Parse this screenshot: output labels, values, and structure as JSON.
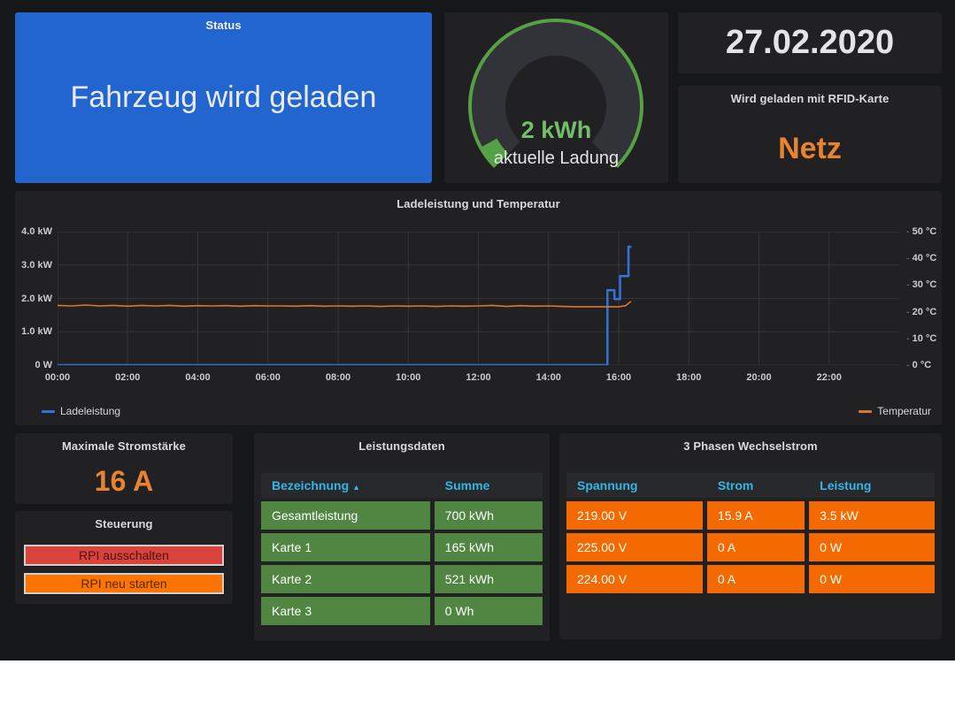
{
  "theme": {
    "background": "#161719",
    "panel": "#212124",
    "accent_blue": "#3274d9",
    "accent_orange": "#e0752d",
    "accent_green": "#55a144",
    "table_header_blue": "#33b5e5"
  },
  "status_panel": {
    "title": "Status",
    "text": "Fahrzeug wird geladen",
    "bg_color": "#2265cf"
  },
  "gauge_panel": {
    "value": "2 kWh",
    "label": "aktuelle Ladung",
    "fraction": 0.06,
    "arc_color": "#55a144",
    "value_color": "#73bf69"
  },
  "date_panel": {
    "value": "27.02.2020"
  },
  "rfid_panel": {
    "title": "Wird geladen mit RFID-Karte",
    "value": "Netz",
    "value_color": "#e8832e"
  },
  "chart_data": {
    "type": "line",
    "title": "Ladeleistung und Temperatur",
    "x_ticks": [
      "00:00",
      "02:00",
      "04:00",
      "06:00",
      "08:00",
      "10:00",
      "12:00",
      "14:00",
      "16:00",
      "18:00",
      "20:00",
      "22:00"
    ],
    "x_range_hours": [
      0,
      24
    ],
    "grid": true,
    "left_axis": {
      "tick_labels": [
        "4.0 kW",
        "3.0 kW",
        "2.0 kW",
        "1.0 kW",
        "0 W"
      ],
      "tick_values": [
        4,
        3,
        2,
        1,
        0
      ],
      "range": [
        0,
        4
      ]
    },
    "right_axis": {
      "tick_labels": [
        "50 °C",
        "40 °C",
        "30 °C",
        "20 °C",
        "10 °C",
        "0 °C"
      ],
      "tick_values": [
        50,
        40,
        30,
        20,
        10,
        0
      ],
      "range": [
        0,
        50
      ]
    },
    "legend_position": "bottom",
    "series": [
      {
        "name": "Ladeleistung",
        "axis": "left",
        "color": "#3274d9",
        "width": 2.5,
        "points": [
          [
            0,
            0
          ],
          [
            15.68,
            0
          ],
          [
            15.68,
            2.25
          ],
          [
            15.88,
            2.25
          ],
          [
            15.88,
            1.98
          ],
          [
            16.04,
            1.98
          ],
          [
            16.04,
            2.67
          ],
          [
            16.28,
            2.67
          ],
          [
            16.28,
            3.55
          ],
          [
            16.36,
            3.55
          ]
        ]
      },
      {
        "name": "Temperatur",
        "axis": "right",
        "color": "#e0752d",
        "width": 1.6,
        "points": [
          [
            0,
            22.4
          ],
          [
            0.4,
            22.2
          ],
          [
            0.8,
            22.5
          ],
          [
            1.2,
            22.2
          ],
          [
            1.6,
            22.4
          ],
          [
            2.0,
            22.1
          ],
          [
            2.4,
            22.4
          ],
          [
            2.8,
            22.2
          ],
          [
            3.2,
            22.4
          ],
          [
            3.6,
            22.1
          ],
          [
            4.0,
            22.3
          ],
          [
            4.4,
            22.2
          ],
          [
            4.8,
            22.3
          ],
          [
            5.2,
            22.1
          ],
          [
            5.6,
            22.3
          ],
          [
            6.0,
            22.2
          ],
          [
            6.4,
            22.2
          ],
          [
            6.8,
            22.1
          ],
          [
            7.2,
            22.3
          ],
          [
            7.6,
            22.1
          ],
          [
            8.0,
            22.2
          ],
          [
            8.4,
            22.1
          ],
          [
            8.8,
            22.2
          ],
          [
            9.2,
            22.0
          ],
          [
            9.6,
            22.2
          ],
          [
            10.0,
            22.1
          ],
          [
            10.4,
            22.2
          ],
          [
            10.8,
            22.0
          ],
          [
            11.2,
            22.2
          ],
          [
            11.6,
            22.1
          ],
          [
            12.0,
            22.2
          ],
          [
            12.4,
            22.4
          ],
          [
            12.8,
            22.0
          ],
          [
            13.2,
            22.3
          ],
          [
            13.6,
            22.1
          ],
          [
            14.0,
            22.2
          ],
          [
            14.4,
            22.0
          ],
          [
            14.8,
            21.9
          ],
          [
            15.2,
            21.9
          ],
          [
            15.6,
            21.9
          ],
          [
            16.0,
            21.9
          ],
          [
            16.2,
            22.3
          ],
          [
            16.35,
            23.9
          ]
        ]
      }
    ]
  },
  "max_current_panel": {
    "title": "Maximale Stromstärke",
    "value": "16 A"
  },
  "control_panel": {
    "title": "Steuerung",
    "buttons": [
      {
        "label": "RPI ausschalten",
        "bg_color": "#d9433b",
        "text_color": "#4a1512"
      },
      {
        "label": "RPI neu starten",
        "bg_color": "#ff7300",
        "text_color": "#4d2a00"
      }
    ]
  },
  "power_table": {
    "title": "Leistungsdaten",
    "columns": [
      {
        "label": "Bezeichnung",
        "sort": "asc"
      },
      {
        "label": "Summe"
      }
    ],
    "sort_caret": "▲",
    "row_color": "#508642",
    "rows": [
      [
        "Gesamtleistung",
        "700 kWh"
      ],
      [
        "Karte 1",
        "165 kWh"
      ],
      [
        "Karte 2",
        "521 kWh"
      ],
      [
        "Karte 3",
        "0 Wh"
      ]
    ]
  },
  "phase_table": {
    "title": "3 Phasen Wechselstrom",
    "columns": [
      {
        "label": "Spannung"
      },
      {
        "label": "Strom"
      },
      {
        "label": "Leistung"
      }
    ],
    "row_color": "#f56a00",
    "rows": [
      [
        "219.00 V",
        "15.9 A",
        "3.5 kW"
      ],
      [
        "225.00 V",
        "0 A",
        "0 W"
      ],
      [
        "224.00 V",
        "0 A",
        "0 W"
      ]
    ]
  }
}
